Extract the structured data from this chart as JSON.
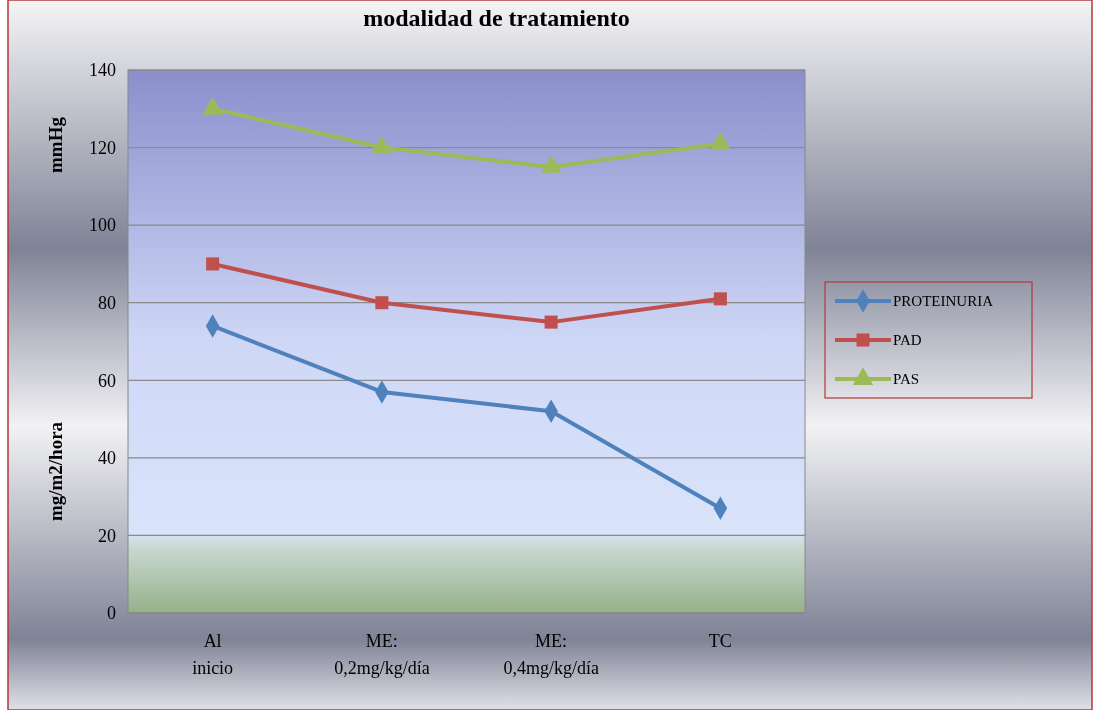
{
  "chart_data": {
    "type": "line",
    "title": "modalidad de tratamiento",
    "ylabel": "mg/m2/hora",
    "annotations": [
      "mmHg"
    ],
    "categories": [
      "Al inicio",
      "ME: 0,2mg/kg/día",
      "ME: 0,4mg/kg/día",
      "TC"
    ],
    "series": [
      {
        "name": "PROTEINURIA",
        "color": "#4f81bd",
        "marker": "diamond",
        "values": [
          74,
          57,
          52,
          27
        ]
      },
      {
        "name": "PAD",
        "color": "#c0504d",
        "marker": "square",
        "values": [
          90,
          80,
          75,
          81
        ]
      },
      {
        "name": "PAS",
        "color": "#9bbb59",
        "marker": "triangle",
        "values": [
          130,
          120,
          115,
          121
        ]
      }
    ],
    "ylim": [
      0,
      140
    ],
    "yticks": [
      0,
      20,
      40,
      60,
      80,
      100,
      120,
      140
    ],
    "grid": "y",
    "legend": "right",
    "line_style": "solid"
  }
}
